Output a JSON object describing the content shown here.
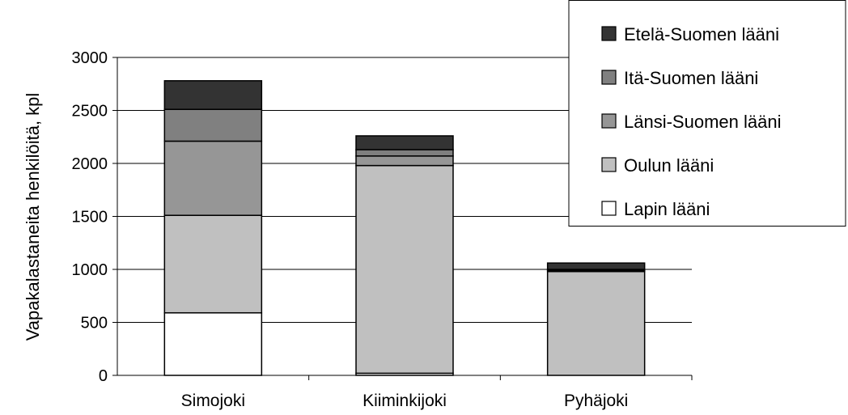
{
  "chart_data": {
    "type": "bar",
    "stacked": true,
    "title": "",
    "xlabel": "",
    "ylabel": "Vapakalastaneita henkilöitä, kpl",
    "ylim": [
      0,
      3000
    ],
    "yticks": [
      0,
      500,
      1000,
      1500,
      2000,
      2500,
      3000
    ],
    "grid": true,
    "legend_position": "top-right",
    "categories": [
      "Simojoki",
      "Kiiminkijoki",
      "Pyhäjoki"
    ],
    "series": [
      {
        "name": "Lapin lääni",
        "color": "#ffffff",
        "values": [
          590,
          20,
          0
        ]
      },
      {
        "name": "Oulun lääni",
        "color": "#c0c0c0",
        "values": [
          920,
          1960,
          980
        ]
      },
      {
        "name": "Länsi-Suomen lääni",
        "color": "#969696",
        "values": [
          700,
          90,
          10
        ]
      },
      {
        "name": "Itä-Suomen lääni",
        "color": "#808080",
        "values": [
          300,
          60,
          10
        ]
      },
      {
        "name": "Etelä-Suomen lääni",
        "color": "#333333",
        "values": [
          270,
          130,
          60
        ]
      }
    ]
  }
}
